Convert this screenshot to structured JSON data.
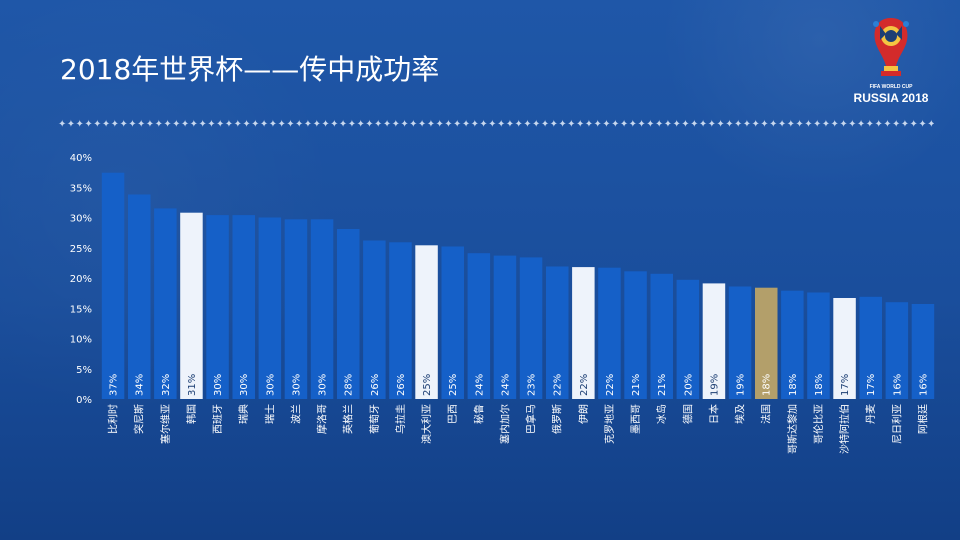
{
  "slide": {
    "title": "2018年世界杯——传中成功率",
    "divider": "✦✦✦✦✦✦✦✦✦✦✦✦✦✦✦✦✦✦✦✦✦✦✦✦✦✦✦✦✦✦✦✦✦✦✦✦✦✦✦✦✦✦✦✦✦✦✦✦✦✦✦✦✦✦✦✦✦✦✦✦✦✦✦✦✦✦✦✦✦✦✦✦✦✦✦✦✦✦✦✦✦✦✦✦✦✦✦✦✦✦✦✦✦✦✦✦✦✦✦✦"
  },
  "logo": {
    "line1": "FIFA WORLD CUP",
    "line2": "RUSSIA 2018",
    "icon": "world-cup-trophy-icon"
  },
  "colors": {
    "bar_default": "#1560c8",
    "bar_highlight": "#eef3fb",
    "bar_france": "#b39f6a",
    "text": "#ffffff"
  },
  "chart_data": {
    "type": "bar",
    "title": "",
    "xlabel": "",
    "ylabel": "",
    "ylim": [
      0,
      40
    ],
    "yticks": [
      "0%",
      "5%",
      "10%",
      "15%",
      "20%",
      "25%",
      "30%",
      "35%",
      "40%"
    ],
    "grid": false,
    "categories": [
      "比利时",
      "突尼斯",
      "塞尔维亚",
      "韩国",
      "西班牙",
      "瑞典",
      "瑞士",
      "波兰",
      "摩洛哥",
      "英格兰",
      "葡萄牙",
      "乌拉圭",
      "澳大利亚",
      "巴西",
      "秘鲁",
      "塞内加尔",
      "巴拿马",
      "俄罗斯",
      "伊朗",
      "克罗地亚",
      "墨西哥",
      "冰岛",
      "德国",
      "日本",
      "埃及",
      "法国",
      "哥斯达黎加",
      "哥伦比亚",
      "沙特阿拉伯",
      "丹麦",
      "尼日利亚",
      "阿根廷"
    ],
    "values": [
      37.4,
      33.8,
      31.5,
      30.8,
      30.4,
      30.4,
      30.0,
      29.7,
      29.7,
      28.1,
      26.2,
      25.9,
      25.4,
      25.2,
      24.1,
      23.7,
      23.4,
      21.9,
      21.8,
      21.7,
      21.1,
      20.7,
      19.7,
      19.1,
      18.6,
      18.4,
      17.9,
      17.6,
      16.7,
      16.9,
      16.0,
      15.7
    ],
    "labels": [
      "37%",
      "34%",
      "32%",
      "31%",
      "30%",
      "30%",
      "30%",
      "30%",
      "30%",
      "28%",
      "26%",
      "26%",
      "25%",
      "25%",
      "24%",
      "24%",
      "23%",
      "22%",
      "22%",
      "22%",
      "21%",
      "21%",
      "20%",
      "19%",
      "19%",
      "18%",
      "18%",
      "18%",
      "17%",
      "17%",
      "16%",
      "16%"
    ],
    "highlight": [
      "default",
      "default",
      "default",
      "highlight",
      "default",
      "default",
      "default",
      "default",
      "default",
      "default",
      "default",
      "default",
      "highlight",
      "default",
      "default",
      "default",
      "default",
      "default",
      "highlight",
      "default",
      "default",
      "default",
      "default",
      "highlight",
      "default",
      "france",
      "default",
      "default",
      "highlight",
      "default",
      "default",
      "default"
    ]
  }
}
